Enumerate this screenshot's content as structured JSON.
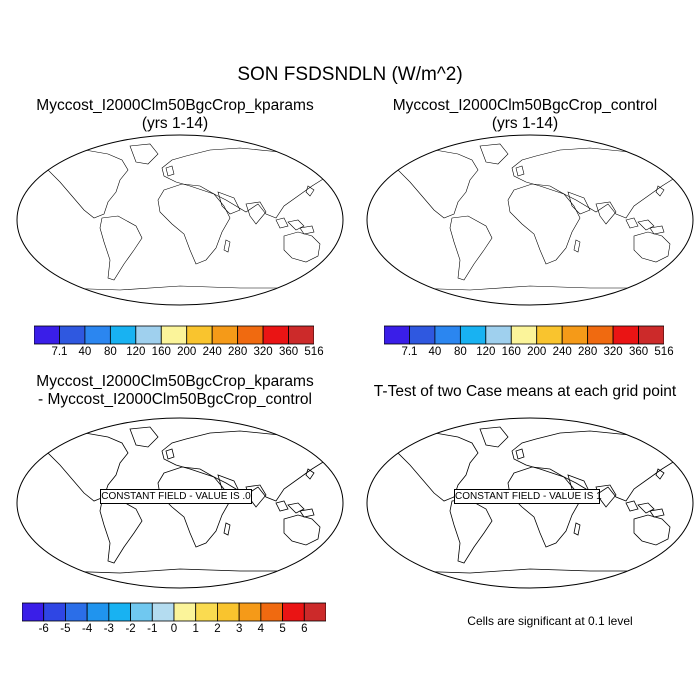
{
  "main_title": "SON FSDSNDLN (W/m^2)",
  "panels": [
    {
      "title_line1": "Myccost_I2000Clm50BgcCrop_kparams",
      "title_line2": "(yrs 1-14)"
    },
    {
      "title_line1": "Myccost_I2000Clm50BgcCrop_control",
      "title_line2": "(yrs 1-14)"
    },
    {
      "title_line1": "Myccost_I2000Clm50BgcCrop_kparams",
      "title_line2": "- Myccost_I2000Clm50BgcCrop_control",
      "constant_label": "CONSTANT FIELD - VALUE IS .0"
    },
    {
      "title_line1": "T-Test of two Case means at each grid point",
      "constant_label": "CONSTANT FIELD - VALUE IS 1"
    }
  ],
  "colorbar_top": {
    "labels": [
      "7.1",
      "40",
      "80",
      "120",
      "160",
      "200",
      "240",
      "280",
      "320",
      "360",
      "516"
    ],
    "colors": [
      "#3a1ee8",
      "#2f58e0",
      "#2b86f0",
      "#18b2f2",
      "#9fd0ee",
      "#fbf49a",
      "#f9c42e",
      "#f59a18",
      "#f06a10",
      "#ea1414",
      "#cc2a2a"
    ]
  },
  "colorbar_bottom": {
    "labels": [
      "-6",
      "-5",
      "-4",
      "-3",
      "-2",
      "-1",
      "0",
      "1",
      "2",
      "3",
      "4",
      "5",
      "6"
    ],
    "colors": [
      "#3a1ee8",
      "#2f46e4",
      "#2b6ee8",
      "#2094ee",
      "#18b2f2",
      "#70c8f0",
      "#b4dcf0",
      "#fbf49a",
      "#fadb50",
      "#f9c42e",
      "#f59a18",
      "#f06a10",
      "#ea1414",
      "#cc2a2a"
    ]
  },
  "significance_note": "Cells are significant at 0.1 level"
}
